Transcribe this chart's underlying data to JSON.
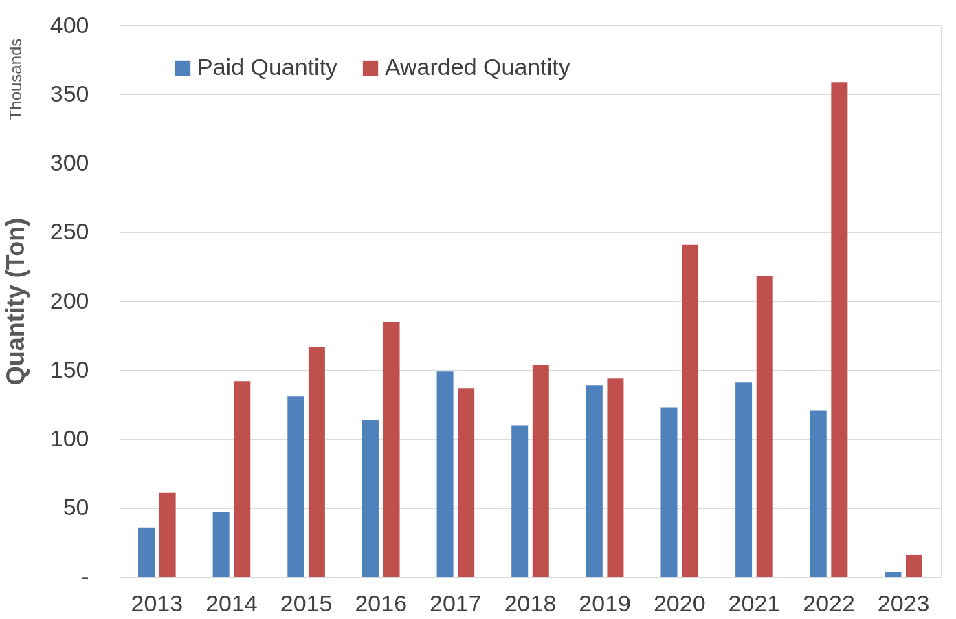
{
  "chart_data": {
    "type": "bar",
    "ylabel": "Quantity (Ton)",
    "annotations": [
      "Thousands"
    ],
    "categories": [
      "2013",
      "2014",
      "2015",
      "2016",
      "2017",
      "2018",
      "2019",
      "2020",
      "2021",
      "2022",
      "2023"
    ],
    "series": [
      {
        "name": "Paid Quantity",
        "color": "#4f81bd",
        "values": [
          36,
          47,
          131,
          114,
          149,
          110,
          139,
          123,
          141,
          121,
          4
        ]
      },
      {
        "name": "Awarded Quantity",
        "color": "#c0504d",
        "values": [
          61,
          142,
          167,
          185,
          137,
          154,
          144,
          241,
          218,
          359,
          16
        ]
      }
    ],
    "ylim": [
      0,
      400
    ],
    "yticks": [
      {
        "value": 0,
        "label": "-"
      },
      50,
      100,
      150,
      200,
      250,
      300,
      350,
      400
    ],
    "grid": "y",
    "legend": "top left"
  }
}
